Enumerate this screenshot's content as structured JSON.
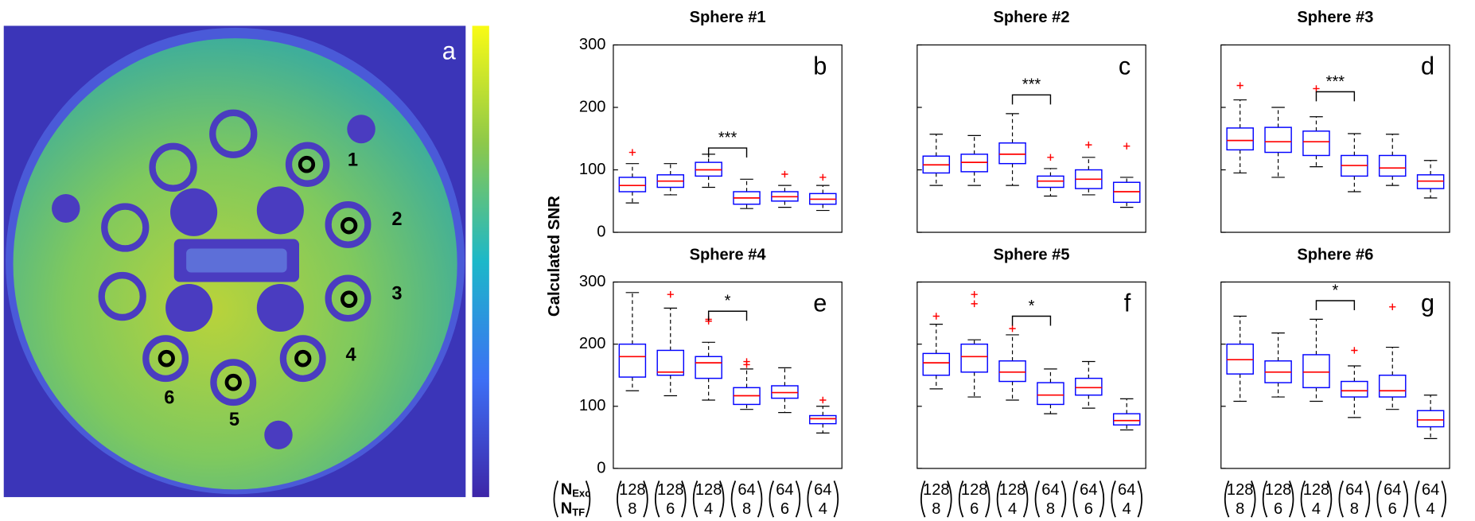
{
  "image_panel": {
    "label": "a",
    "sphere_labels": [
      "1",
      "2",
      "3",
      "4",
      "5",
      "6"
    ]
  },
  "chart_data": [
    {
      "type": "box",
      "title": "Sphere #1",
      "label": "b",
      "significance": "***",
      "ylabel": "Calculated SNR",
      "show_ytick_labels": true,
      "ylim": [
        0,
        300
      ],
      "yticks": [
        0,
        100,
        200,
        300
      ],
      "boxes": [
        {
          "min": 47,
          "q1": 65,
          "median": 75,
          "q3": 88,
          "max": 110,
          "outliers": [
            128
          ]
        },
        {
          "min": 60,
          "q1": 72,
          "median": 82,
          "q3": 92,
          "max": 110,
          "outliers": []
        },
        {
          "min": 72,
          "q1": 90,
          "median": 100,
          "q3": 112,
          "max": 125,
          "outliers": []
        },
        {
          "min": 38,
          "q1": 45,
          "median": 55,
          "q3": 65,
          "max": 85,
          "outliers": []
        },
        {
          "min": 40,
          "q1": 50,
          "median": 57,
          "q3": 65,
          "max": 75,
          "outliers": [
            93
          ]
        },
        {
          "min": 35,
          "q1": 45,
          "median": 53,
          "q3": 62,
          "max": 75,
          "outliers": [
            88
          ]
        }
      ]
    },
    {
      "type": "box",
      "title": "Sphere #2",
      "label": "c",
      "significance": "***",
      "show_ytick_labels": false,
      "ylim": [
        0,
        300
      ],
      "yticks": [
        0,
        100,
        200,
        300
      ],
      "boxes": [
        {
          "min": 75,
          "q1": 95,
          "median": 108,
          "q3": 122,
          "max": 157,
          "outliers": []
        },
        {
          "min": 75,
          "q1": 97,
          "median": 112,
          "q3": 125,
          "max": 155,
          "outliers": []
        },
        {
          "min": 75,
          "q1": 110,
          "median": 125,
          "q3": 143,
          "max": 190,
          "outliers": []
        },
        {
          "min": 58,
          "q1": 72,
          "median": 82,
          "q3": 90,
          "max": 102,
          "outliers": [
            120
          ]
        },
        {
          "min": 60,
          "q1": 70,
          "median": 85,
          "q3": 100,
          "max": 120,
          "outliers": [
            140
          ]
        },
        {
          "min": 40,
          "q1": 48,
          "median": 65,
          "q3": 80,
          "max": 88,
          "outliers": [
            138
          ]
        }
      ]
    },
    {
      "type": "box",
      "title": "Sphere #3",
      "label": "d",
      "significance": "***",
      "show_ytick_labels": false,
      "ylim": [
        0,
        300
      ],
      "yticks": [
        0,
        100,
        200,
        300
      ],
      "boxes": [
        {
          "min": 95,
          "q1": 132,
          "median": 147,
          "q3": 167,
          "max": 212,
          "outliers": [
            235
          ]
        },
        {
          "min": 88,
          "q1": 128,
          "median": 145,
          "q3": 168,
          "max": 200,
          "outliers": []
        },
        {
          "min": 105,
          "q1": 123,
          "median": 145,
          "q3": 162,
          "max": 185,
          "outliers": [
            230
          ]
        },
        {
          "min": 65,
          "q1": 90,
          "median": 107,
          "q3": 123,
          "max": 158,
          "outliers": []
        },
        {
          "min": 75,
          "q1": 90,
          "median": 103,
          "q3": 123,
          "max": 157,
          "outliers": []
        },
        {
          "min": 55,
          "q1": 70,
          "median": 82,
          "q3": 92,
          "max": 115,
          "outliers": []
        }
      ]
    },
    {
      "type": "box",
      "title": "Sphere #4",
      "label": "e",
      "significance": "*",
      "show_ytick_labels": true,
      "ylim": [
        0,
        300
      ],
      "yticks": [
        0,
        100,
        200,
        300
      ],
      "x_row_labels": [
        {
          "symbol": "N",
          "subscript": "Exc"
        },
        {
          "symbol": "N",
          "subscript": "TF"
        }
      ],
      "categories": [
        [
          "128",
          "8"
        ],
        [
          "128",
          "6"
        ],
        [
          "128",
          "4"
        ],
        [
          "64",
          "8"
        ],
        [
          "64",
          "6"
        ],
        [
          "64",
          "4"
        ]
      ],
      "boxes": [
        {
          "min": 125,
          "q1": 147,
          "median": 180,
          "q3": 200,
          "max": 283,
          "outliers": []
        },
        {
          "min": 117,
          "q1": 150,
          "median": 155,
          "q3": 190,
          "max": 258,
          "outliers": [
            280
          ]
        },
        {
          "min": 110,
          "q1": 145,
          "median": 170,
          "q3": 180,
          "max": 203,
          "outliers": [
            237,
            240
          ]
        },
        {
          "min": 95,
          "q1": 103,
          "median": 117,
          "q3": 130,
          "max": 160,
          "outliers": [
            167,
            172
          ]
        },
        {
          "min": 90,
          "q1": 113,
          "median": 122,
          "q3": 133,
          "max": 162,
          "outliers": []
        },
        {
          "min": 57,
          "q1": 72,
          "median": 80,
          "q3": 85,
          "max": 100,
          "outliers": [
            110
          ]
        }
      ]
    },
    {
      "type": "box",
      "title": "Sphere #5",
      "label": "f",
      "significance": "*",
      "show_ytick_labels": false,
      "ylim": [
        0,
        300
      ],
      "yticks": [
        0,
        100,
        200,
        300
      ],
      "categories": [
        [
          "128",
          "8"
        ],
        [
          "128",
          "6"
        ],
        [
          "128",
          "4"
        ],
        [
          "64",
          "8"
        ],
        [
          "64",
          "6"
        ],
        [
          "64",
          "4"
        ]
      ],
      "boxes": [
        {
          "min": 128,
          "q1": 150,
          "median": 170,
          "q3": 185,
          "max": 232,
          "outliers": [
            245
          ]
        },
        {
          "min": 115,
          "q1": 155,
          "median": 180,
          "q3": 200,
          "max": 207,
          "outliers": [
            265,
            280
          ]
        },
        {
          "min": 110,
          "q1": 140,
          "median": 155,
          "q3": 173,
          "max": 215,
          "outliers": [
            225
          ]
        },
        {
          "min": 88,
          "q1": 103,
          "median": 118,
          "q3": 138,
          "max": 160,
          "outliers": []
        },
        {
          "min": 97,
          "q1": 118,
          "median": 130,
          "q3": 145,
          "max": 172,
          "outliers": []
        },
        {
          "min": 62,
          "q1": 70,
          "median": 77,
          "q3": 88,
          "max": 112,
          "outliers": []
        }
      ]
    },
    {
      "type": "box",
      "title": "Sphere #6",
      "label": "g",
      "significance": "*",
      "show_ytick_labels": false,
      "ylim": [
        0,
        300
      ],
      "yticks": [
        0,
        100,
        200,
        300
      ],
      "categories": [
        [
          "128",
          "8"
        ],
        [
          "128",
          "6"
        ],
        [
          "128",
          "4"
        ],
        [
          "64",
          "8"
        ],
        [
          "64",
          "6"
        ],
        [
          "64",
          "4"
        ]
      ],
      "boxes": [
        {
          "min": 108,
          "q1": 152,
          "median": 175,
          "q3": 200,
          "max": 245,
          "outliers": []
        },
        {
          "min": 115,
          "q1": 138,
          "median": 155,
          "q3": 173,
          "max": 218,
          "outliers": []
        },
        {
          "min": 108,
          "q1": 130,
          "median": 155,
          "q3": 183,
          "max": 240,
          "outliers": []
        },
        {
          "min": 82,
          "q1": 115,
          "median": 125,
          "q3": 140,
          "max": 165,
          "outliers": [
            190
          ]
        },
        {
          "min": 95,
          "q1": 115,
          "median": 125,
          "q3": 150,
          "max": 195,
          "outliers": [
            260
          ]
        },
        {
          "min": 48,
          "q1": 67,
          "median": 78,
          "q3": 93,
          "max": 118,
          "outliers": []
        }
      ]
    }
  ]
}
